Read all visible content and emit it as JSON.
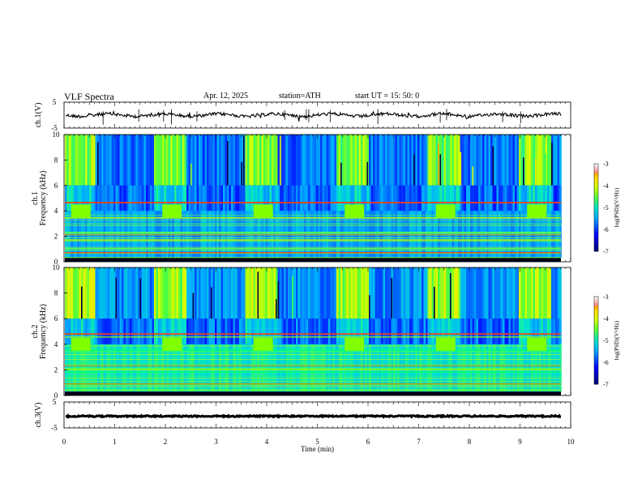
{
  "header": {
    "title": "VLF  Spectra",
    "date": "Apr. 12, 2025",
    "station": "station=ATH",
    "start": "start  UT  =    15: 50: 0"
  },
  "chart_data": {
    "type": "heatmap",
    "xlabel": "Time  (min)",
    "xlim": [
      0,
      10
    ],
    "xticks": [
      "0",
      "1",
      "2",
      "3",
      "4",
      "5",
      "6",
      "7",
      "8",
      "9",
      "10"
    ],
    "panels": [
      {
        "name": "ch.1 waveform",
        "ylabel": "ch.1(V)",
        "ylim": [
          -5,
          5
        ],
        "yticks": [
          "5",
          "-5"
        ]
      },
      {
        "name": "ch.1 spectrogram",
        "ylabel_top": "ch.1",
        "ylabel": "Frequency  (kHz)",
        "ylim": [
          0,
          10
        ],
        "yticks": [
          "0",
          "2",
          "4",
          "6",
          "8",
          "10"
        ]
      },
      {
        "name": "ch.2 spectrogram",
        "ylabel_top": "ch.2",
        "ylabel": "Frequency  (kHz)",
        "ylim": [
          0,
          10
        ],
        "yticks": [
          "0",
          "2",
          "4",
          "6",
          "8",
          "10"
        ]
      },
      {
        "name": "ch.3 waveform",
        "ylabel": "ch.3(V)",
        "ylim": [
          -5,
          5
        ],
        "yticks": [
          "5",
          "-5"
        ]
      }
    ],
    "colorbar": {
      "label": "log(PSD)(V²/Hz)",
      "range": [
        -7,
        -3
      ],
      "ticks": [
        "-3",
        "-4",
        "-5",
        "-6",
        "-7"
      ]
    },
    "bursts_min": [
      0.3,
      2.1,
      3.9,
      5.7,
      7.5,
      9.3
    ],
    "burst_freq_khz": [
      3.5,
      4.5
    ],
    "colors": {
      "background": "#0000a0",
      "mid": "#00c8c8",
      "high": "#7cff00",
      "peak": "#ffff00"
    }
  }
}
